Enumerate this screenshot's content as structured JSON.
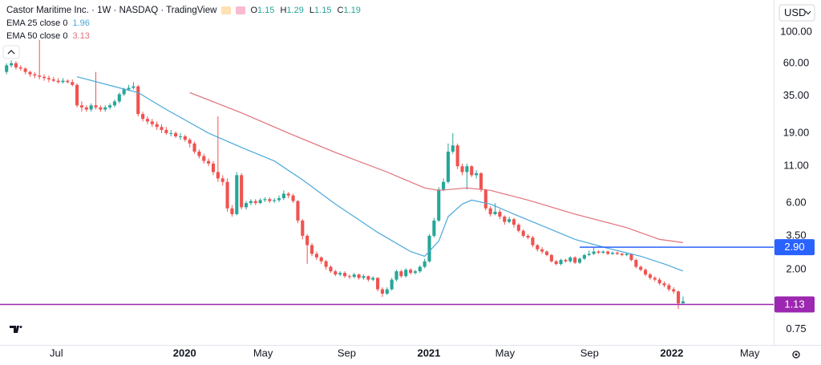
{
  "header": {
    "title": "Castor Maritime Inc. · 1W · NASDAQ · TradingView"
  },
  "chart_data": {
    "type": "candlestick",
    "currency": "USD",
    "ohlc_labels": [
      "O",
      "H",
      "L",
      "C"
    ],
    "up_color": "#26a69a",
    "down_color": "#ef5350",
    "open": [
      52,
      58,
      60,
      56,
      55,
      52,
      50,
      49,
      48,
      47,
      46,
      45,
      44,
      45,
      44,
      42,
      30,
      29,
      28,
      30,
      29,
      28,
      29,
      30,
      32,
      36,
      39,
      40,
      41,
      26,
      24,
      23,
      22,
      21,
      20,
      19,
      19,
      18,
      18,
      17,
      16,
      14,
      13,
      12,
      11.5,
      10,
      9,
      8.5,
      5.5,
      5,
      9.5,
      5.6,
      6,
      6.2,
      6,
      6.3,
      6.4,
      6.2,
      6.3,
      6.5,
      7,
      6.8,
      6.2,
      4.5,
      3.5,
      3,
      2.6,
      2.45,
      2.3,
      2.1,
      1.95,
      1.85,
      1.9,
      1.8,
      1.78,
      1.85,
      1.75,
      1.8,
      1.7,
      1.75,
      1.45,
      1.35,
      1.45,
      1.7,
      1.95,
      1.8,
      2,
      1.9,
      1.95,
      2.1,
      2.3,
      3.5,
      4.5,
      7.5,
      8.5,
      14,
      15.5,
      11,
      10,
      11,
      9.5,
      9.8,
      7.5,
      5.5,
      5,
      5.2,
      4.8,
      4.4,
      4.6,
      4.2,
      3.8,
      3.5,
      3.4,
      3,
      2.8,
      2.7,
      2.55,
      2.3,
      2.2,
      2.35,
      2.3,
      2.45,
      2.25,
      2.4,
      2.55,
      2.6,
      2.7,
      2.65,
      2.7,
      2.6,
      2.65,
      2.6,
      2.55,
      2.6,
      2.35,
      2.1,
      2,
      1.85,
      1.75,
      1.7,
      1.6,
      1.55,
      1.45,
      1.4,
      1.15
    ],
    "high": [
      60,
      63,
      62,
      58,
      56,
      53,
      52,
      88,
      50,
      49,
      48,
      47,
      47,
      46,
      46,
      43,
      32,
      30,
      31,
      52,
      30,
      30,
      31,
      33,
      37,
      40,
      42,
      44,
      42,
      27,
      25,
      24,
      23,
      22,
      21,
      20,
      19.5,
      19,
      18.5,
      17.5,
      16.5,
      14.5,
      13.5,
      12.5,
      12,
      25,
      9.5,
      9,
      5.8,
      10,
      9.8,
      6.2,
      6.4,
      6.4,
      6.5,
      6.6,
      6.6,
      6.5,
      6.8,
      7.4,
      7.2,
      7,
      6.3,
      4.6,
      3.6,
      3.1,
      2.7,
      2.5,
      2.35,
      2.15,
      2,
      1.95,
      1.95,
      1.85,
      1.9,
      1.88,
      1.85,
      1.82,
      1.8,
      1.77,
      1.5,
      1.5,
      1.75,
      2,
      2,
      2.05,
      2.05,
      2,
      2.15,
      2.4,
      3.6,
      4.7,
      7.8,
      9,
      16,
      19,
      16,
      11.5,
      11.5,
      11.2,
      10.3,
      10,
      7.6,
      5.7,
      6,
      5.4,
      4.9,
      4.8,
      4.7,
      4.3,
      3.9,
      3.6,
      3.5,
      3.05,
      2.9,
      2.75,
      2.6,
      2.35,
      2.4,
      2.4,
      2.5,
      2.5,
      2.45,
      2.6,
      2.75,
      2.9,
      2.75,
      2.75,
      2.75,
      2.7,
      2.7,
      2.65,
      2.65,
      2.62,
      2.4,
      2.15,
      2.05,
      1.9,
      1.8,
      1.75,
      1.65,
      1.6,
      1.5,
      1.42,
      1.29
    ],
    "low": [
      50,
      56,
      54,
      53,
      50,
      48,
      47,
      46,
      45,
      44,
      44,
      43,
      43,
      43,
      41,
      29,
      27,
      27,
      27,
      28,
      27,
      27,
      28,
      29,
      31,
      35,
      38,
      39,
      25,
      23,
      22,
      21,
      20,
      19,
      18.5,
      18,
      17.5,
      17,
      16.5,
      15,
      13.5,
      12.5,
      11.5,
      11,
      9.5,
      8.5,
      8,
      5.2,
      4.8,
      4.9,
      5.4,
      5.4,
      5.8,
      5.8,
      5.9,
      6.1,
      6,
      6,
      6.1,
      6.3,
      6.5,
      6,
      4.3,
      3.3,
      2.2,
      2.5,
      2.35,
      2.2,
      2,
      1.9,
      1.8,
      1.8,
      1.75,
      1.72,
      1.74,
      1.7,
      1.7,
      1.65,
      1.66,
      1.4,
      1.28,
      1.32,
      1.42,
      1.65,
      1.75,
      1.76,
      1.85,
      1.85,
      1.9,
      2.05,
      2.25,
      3.4,
      4.4,
      7.3,
      8.3,
      13.5,
      10.5,
      9.5,
      7.5,
      9.2,
      9,
      7.2,
      5.3,
      4.8,
      4.9,
      4.6,
      4.2,
      4.3,
      4,
      3.7,
      3.4,
      3.3,
      2.9,
      2.7,
      2.6,
      2.5,
      2.25,
      2.15,
      2.15,
      2.25,
      2.25,
      2.2,
      2.2,
      2.35,
      2.5,
      2.55,
      2.6,
      2.6,
      2.55,
      2.55,
      2.55,
      2.5,
      2.5,
      2.3,
      2.05,
      1.95,
      1.8,
      1.7,
      1.65,
      1.55,
      1.5,
      1.4,
      1.35,
      1.05,
      1.15
    ],
    "close": [
      58,
      60,
      56,
      55,
      52,
      50,
      49,
      48,
      47,
      46,
      45,
      44,
      45,
      44,
      42,
      30,
      29,
      28,
      30,
      29,
      28,
      29,
      30,
      32,
      36,
      39,
      40,
      41,
      26,
      24,
      23,
      22,
      21,
      20,
      19,
      19,
      18,
      18,
      17,
      16,
      14,
      13,
      12,
      11.5,
      10,
      9,
      8.5,
      5.5,
      5,
      9.5,
      5.6,
      6,
      6.2,
      6,
      6.3,
      6.4,
      6.2,
      6.3,
      6.5,
      7,
      6.8,
      6.2,
      4.5,
      3.5,
      3,
      2.6,
      2.45,
      2.3,
      2.1,
      1.95,
      1.85,
      1.9,
      1.8,
      1.78,
      1.85,
      1.75,
      1.8,
      1.7,
      1.75,
      1.45,
      1.35,
      1.45,
      1.7,
      1.95,
      1.8,
      2,
      1.9,
      1.95,
      2.1,
      2.3,
      3.5,
      4.5,
      7.5,
      8.5,
      14,
      15.5,
      11,
      10,
      11,
      9.5,
      9.8,
      7.5,
      5.5,
      5,
      5.2,
      4.8,
      4.4,
      4.6,
      4.2,
      3.8,
      3.5,
      3.4,
      3,
      2.8,
      2.7,
      2.55,
      2.3,
      2.2,
      2.35,
      2.3,
      2.45,
      2.25,
      2.4,
      2.55,
      2.6,
      2.7,
      2.65,
      2.7,
      2.6,
      2.65,
      2.6,
      2.55,
      2.6,
      2.35,
      2.1,
      2,
      1.85,
      1.75,
      1.7,
      1.6,
      1.55,
      1.45,
      1.4,
      1.15,
      1.19
    ],
    "series": [
      {
        "name": "EMA 25 close 0",
        "color": "#4aa8dc",
        "x": [
          15,
          24,
          28,
          34,
          43,
          50,
          57,
          63,
          70,
          79,
          86,
          89,
          92,
          94,
          97,
          99,
          103,
          108,
          115,
          121,
          128,
          135,
          140,
          144
        ],
        "values": [
          48,
          40,
          37,
          28,
          19,
          15,
          12,
          8.8,
          5.9,
          3.7,
          2.7,
          2.5,
          3.2,
          4.8,
          5.9,
          6.3,
          5.9,
          5,
          4,
          3.3,
          2.85,
          2.5,
          2.2,
          1.96
        ]
      },
      {
        "name": "EMA 50 close 0",
        "color": "#e0707a",
        "x": [
          39,
          50,
          60,
          70,
          81,
          89,
          92,
          98,
          103,
          111,
          121,
          132,
          139,
          144
        ],
        "values": [
          37,
          26.5,
          19,
          13.8,
          10,
          7.7,
          7.4,
          7.7,
          7.4,
          6.3,
          5,
          4,
          3.3,
          3.13
        ]
      }
    ],
    "hlines": [
      {
        "value": 2.9,
        "label": "2.90",
        "color": "#2962ff",
        "x_start": 122
      },
      {
        "value": 1.13,
        "label": "1.13",
        "color": "#9c27b0"
      }
    ],
    "log_scale": true,
    "grid": false,
    "xlim": [
      -1.4,
      163.3
    ],
    "ylim": [
      0.58,
      170
    ],
    "xticks": [
      {
        "value": 10.6,
        "label": "Jul"
      },
      {
        "value": 37.9,
        "label": "2020"
      },
      {
        "value": 54.6,
        "label": "May"
      },
      {
        "value": 72.4,
        "label": "Sep"
      },
      {
        "value": 89.9,
        "label": "2021"
      },
      {
        "value": 106.1,
        "label": "May"
      },
      {
        "value": 124.1,
        "label": "Sep"
      },
      {
        "value": 141.6,
        "label": "2022"
      },
      {
        "value": 158.2,
        "label": "May"
      }
    ],
    "yticks": [
      {
        "value": 100,
        "label": "100.00"
      },
      {
        "value": 60,
        "label": "60.00"
      },
      {
        "value": 35,
        "label": "35.00"
      },
      {
        "value": 19,
        "label": "19.00"
      },
      {
        "value": 11,
        "label": "11.00"
      },
      {
        "value": 6,
        "label": "6.00"
      },
      {
        "value": 3.5,
        "label": "3.50"
      },
      {
        "value": 2,
        "label": "2.00"
      },
      {
        "value": 0.75,
        "label": "0.75"
      }
    ]
  }
}
